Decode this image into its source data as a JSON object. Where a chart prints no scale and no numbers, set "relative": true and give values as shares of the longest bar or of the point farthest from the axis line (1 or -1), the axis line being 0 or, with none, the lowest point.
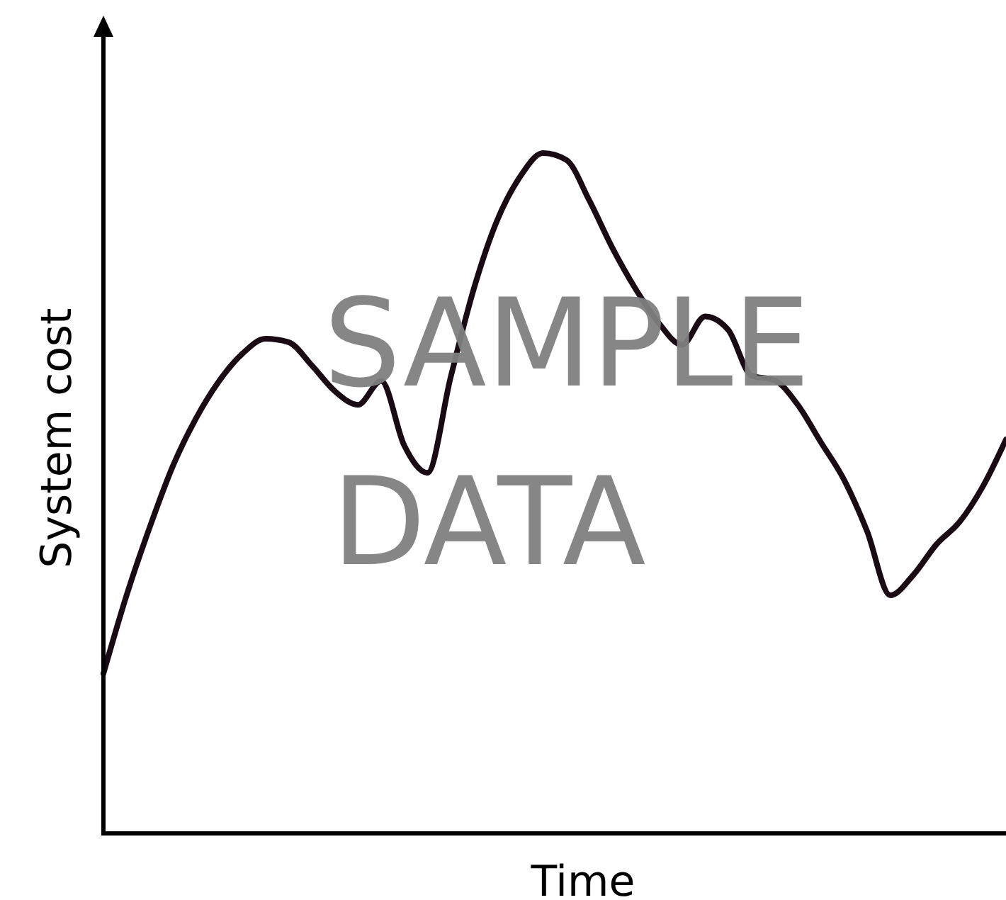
{
  "chart_data": {
    "type": "line",
    "relative": true,
    "xlabel": "Time",
    "ylabel": "System cost",
    "annotations": [
      "SAMPLE DATA"
    ],
    "categories": [
      null,
      null,
      null,
      null,
      null,
      null,
      null,
      null,
      null,
      null,
      null,
      null,
      null,
      null,
      null,
      null,
      null,
      null,
      null,
      null,
      null,
      null,
      null,
      null,
      null,
      null,
      null,
      null,
      null,
      null,
      null,
      null,
      null,
      null,
      null,
      null,
      null,
      null,
      null,
      null
    ],
    "series": [
      {
        "color": "#1a0a14",
        "values": [
          0.235,
          0.35,
          0.45,
          0.54,
          0.61,
          0.665,
          0.705,
          0.727,
          0.722,
          0.688,
          0.65,
          0.63,
          0.665,
          0.57,
          0.53,
          0.67,
          0.8,
          0.9,
          0.965,
          1,
          0.99,
          0.93,
          0.86,
          0.8,
          0.75,
          0.718,
          0.76,
          0.74,
          0.673,
          0.666,
          0.63,
          0.575,
          0.52,
          0.444,
          0.35,
          0.38,
          0.425,
          0.458,
          0.51,
          0.579
        ]
      }
    ]
  }
}
